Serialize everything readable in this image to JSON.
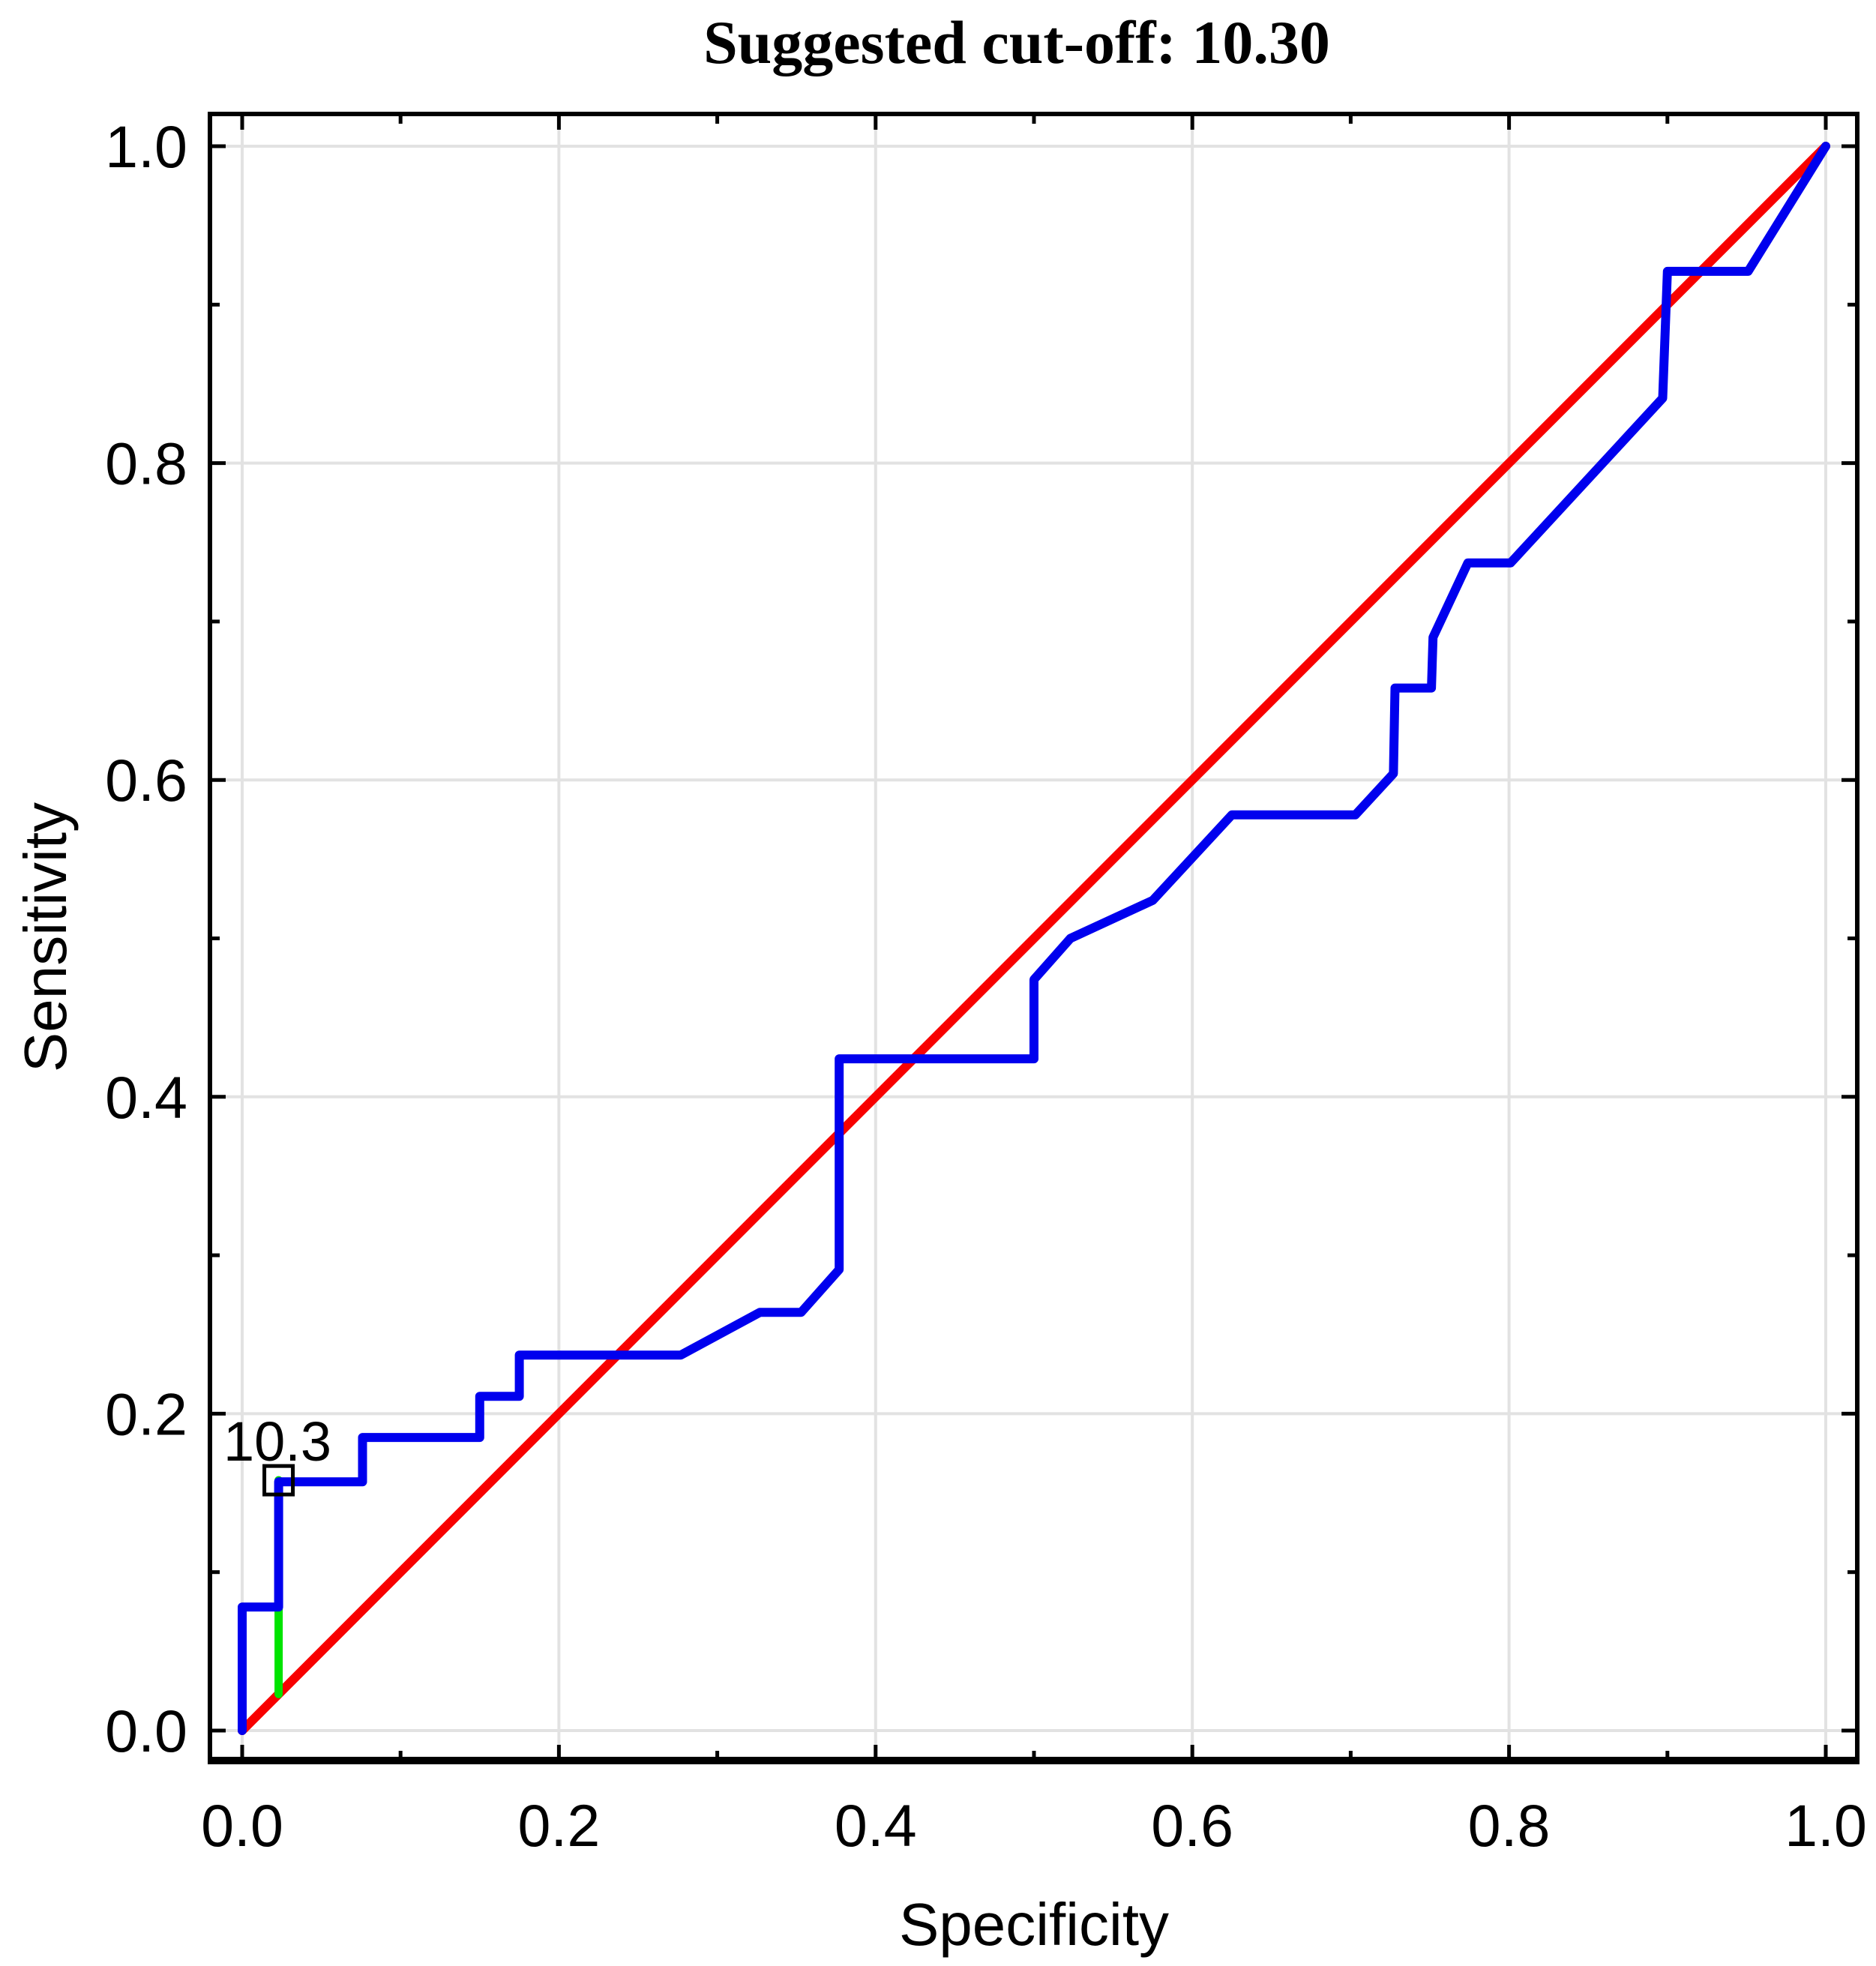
{
  "chart_data": {
    "type": "line",
    "title": "Suggested cut-off: 10.30",
    "xlabel": "Specificity",
    "ylabel": "Sensitivity",
    "xlim": [
      0,
      1
    ],
    "ylim": [
      0,
      1
    ],
    "grid": true,
    "legend": false,
    "x_tick_values": [
      0,
      0.2,
      0.4,
      0.6,
      0.8,
      1
    ],
    "x_tick_labels": [
      "0.0",
      "0.2",
      "0.4",
      "0.6",
      "0.8",
      "1.0"
    ],
    "x_minor_tick_values": [
      0.1,
      0.3,
      0.5,
      0.7,
      0.9
    ],
    "y_tick_values": [
      0,
      0.2,
      0.4,
      0.6,
      0.8,
      1
    ],
    "y_tick_labels": [
      "0.0",
      "0.2",
      "0.4",
      "0.6",
      "0.8",
      "1.0"
    ],
    "y_minor_tick_values": [
      0.1,
      0.3,
      0.5,
      0.7,
      0.9
    ],
    "series": [
      {
        "name": "ROC curve",
        "color": "#0000ee",
        "width": 12,
        "points": [
          [
            0.0,
            0.0
          ],
          [
            0.0,
            0.078
          ],
          [
            0.023,
            0.078
          ],
          [
            0.023,
            0.157
          ],
          [
            0.076,
            0.157
          ],
          [
            0.076,
            0.185
          ],
          [
            0.15,
            0.185
          ],
          [
            0.15,
            0.211
          ],
          [
            0.175,
            0.211
          ],
          [
            0.175,
            0.237
          ],
          [
            0.277,
            0.237
          ],
          [
            0.327,
            0.264
          ],
          [
            0.353,
            0.264
          ],
          [
            0.377,
            0.291
          ],
          [
            0.377,
            0.424
          ],
          [
            0.5,
            0.424
          ],
          [
            0.5,
            0.474
          ],
          [
            0.523,
            0.5
          ],
          [
            0.575,
            0.524
          ],
          [
            0.625,
            0.578
          ],
          [
            0.703,
            0.578
          ],
          [
            0.727,
            0.604
          ],
          [
            0.728,
            0.658
          ],
          [
            0.751,
            0.658
          ],
          [
            0.752,
            0.69
          ],
          [
            0.774,
            0.737
          ],
          [
            0.801,
            0.737
          ],
          [
            0.897,
            0.841
          ],
          [
            0.9,
            0.921
          ],
          [
            0.951,
            0.921
          ],
          [
            1.0,
            1.0
          ]
        ]
      },
      {
        "name": "Chance diagonal",
        "color": "#f80000",
        "width": 12,
        "points": [
          [
            0,
            0
          ],
          [
            1,
            1
          ]
        ]
      },
      {
        "name": "Cut-off drop line",
        "color": "#00e400",
        "width": 11,
        "points": [
          [
            0.023,
            0.023
          ],
          [
            0.023,
            0.158
          ]
        ]
      }
    ],
    "cutoff": {
      "label": "10.3",
      "value_x": 0.023,
      "value_y": 0.158,
      "marker": "open-square"
    },
    "colors": {
      "grid": "#e2e2e2",
      "frame": "#000000",
      "background": "#ffffff",
      "text": "#000000"
    }
  }
}
